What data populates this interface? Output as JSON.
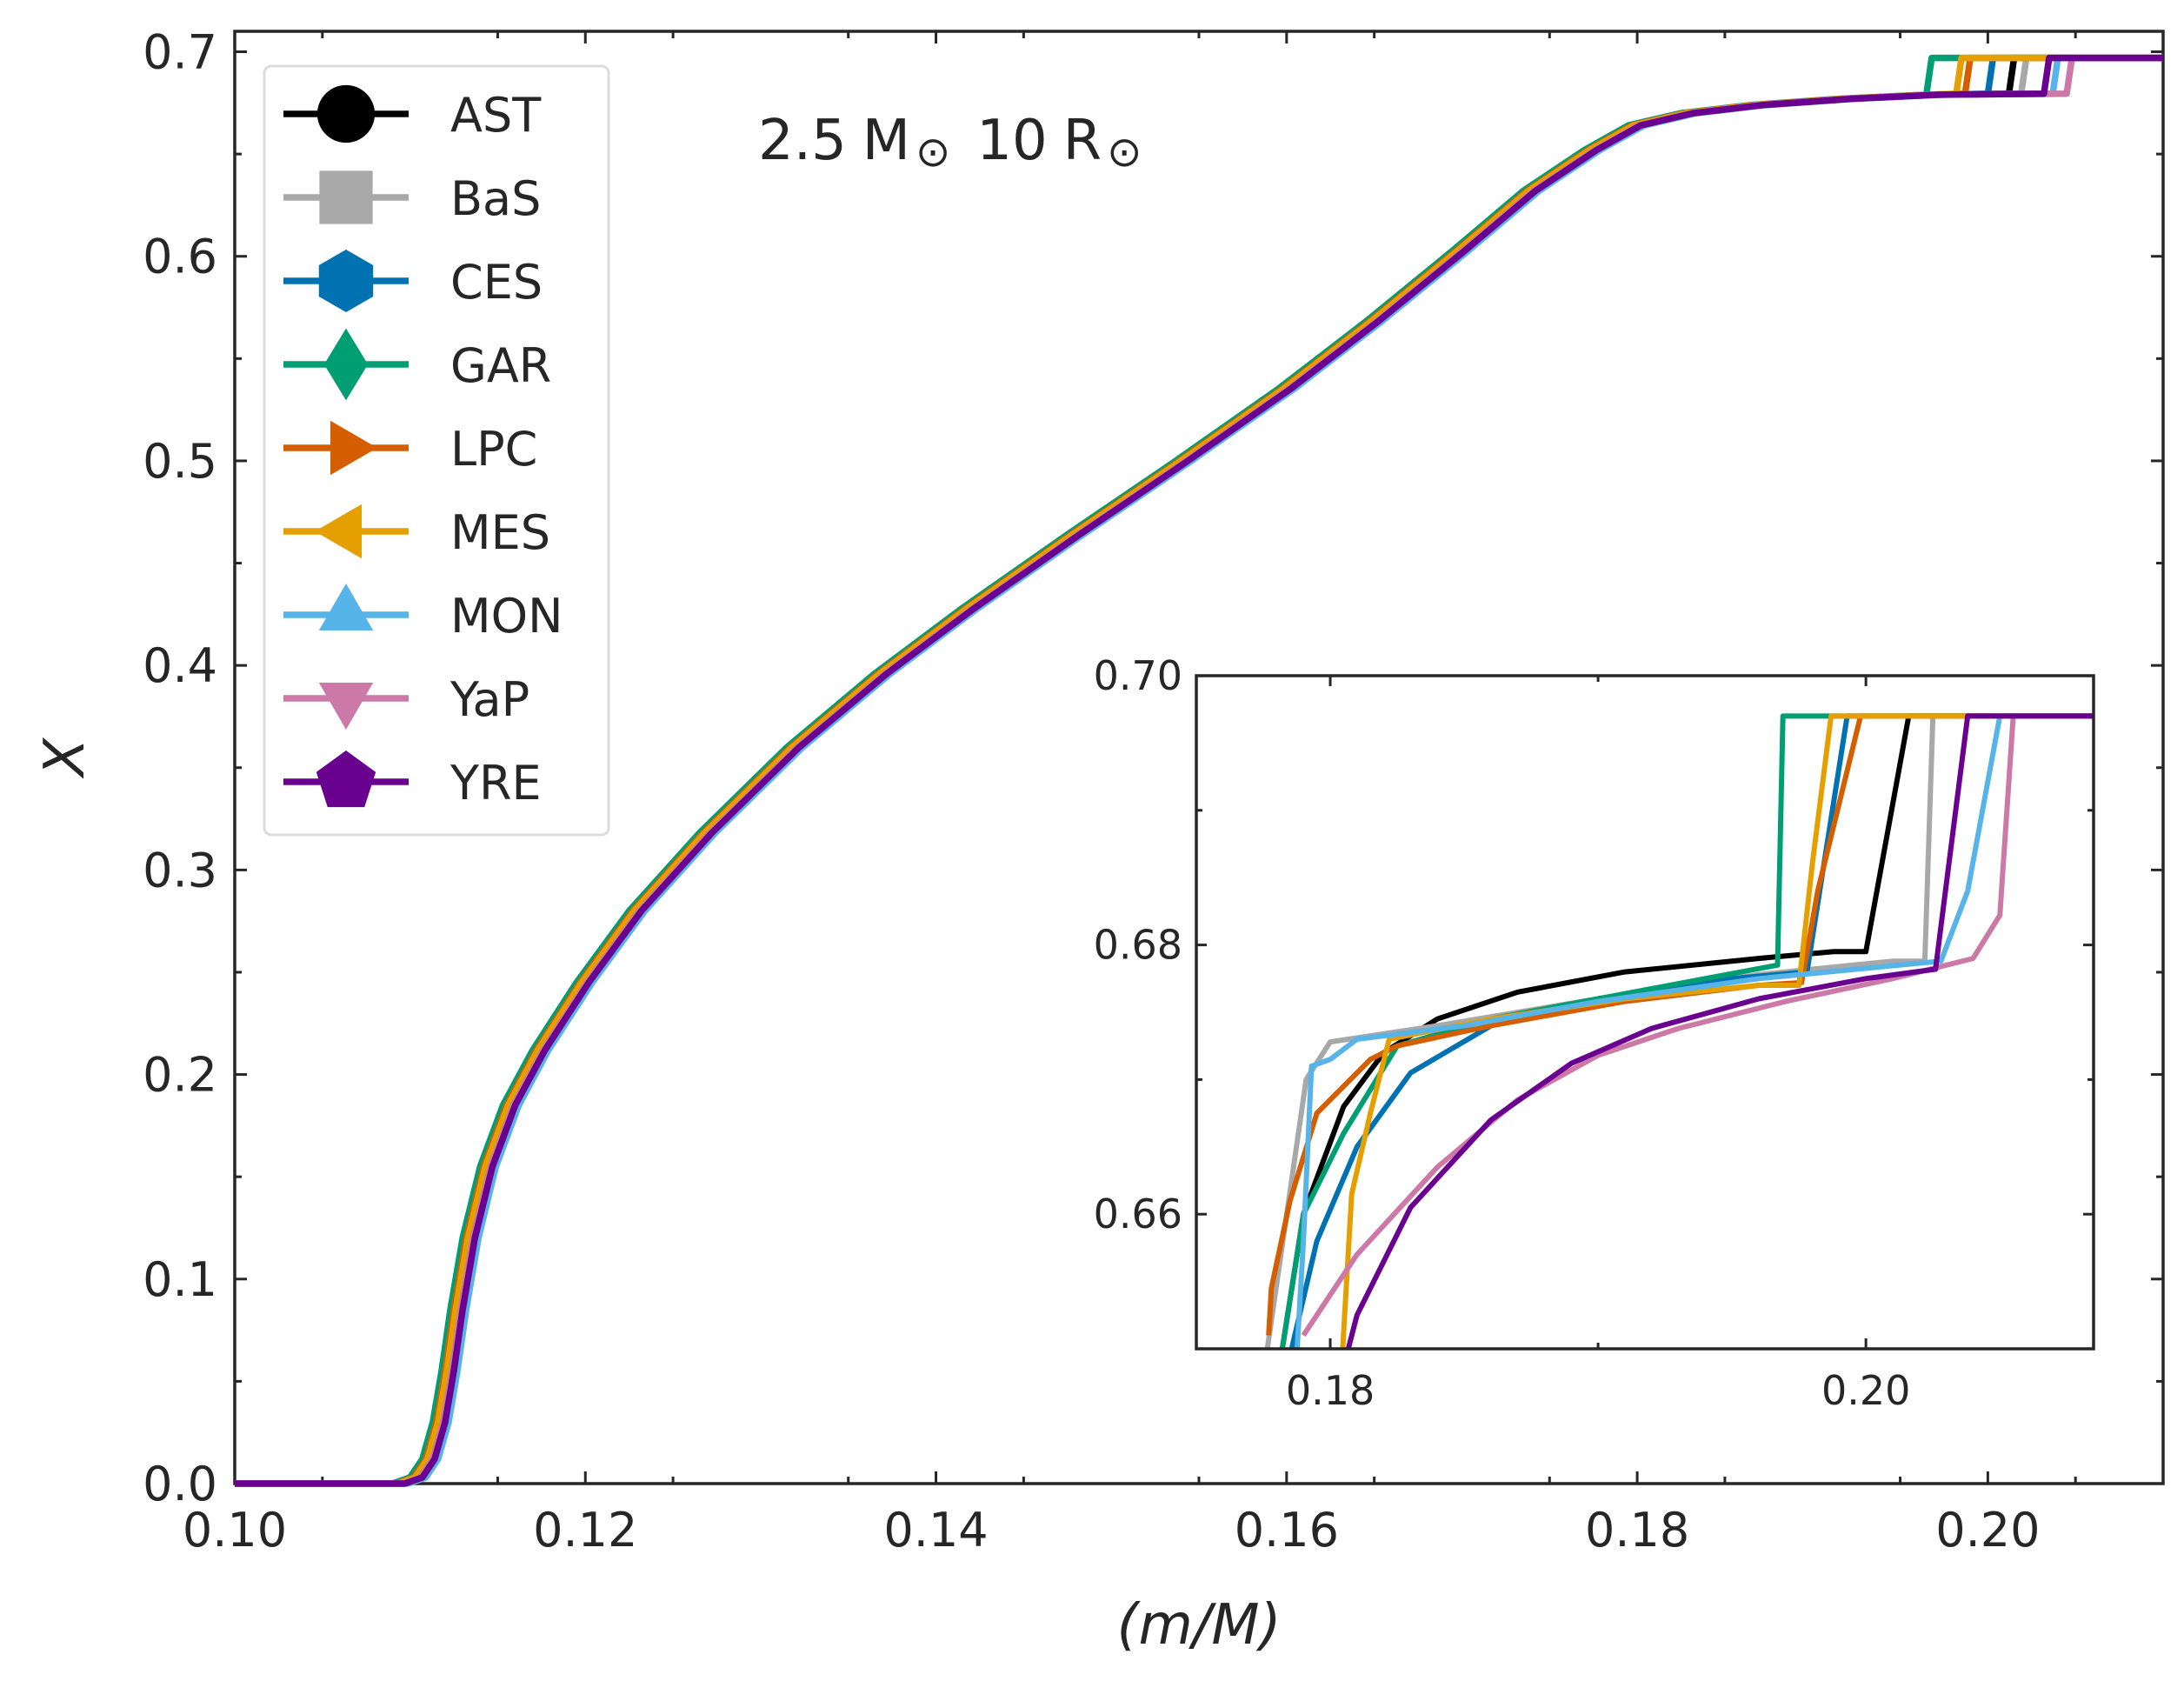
{
  "chart_data": {
    "type": "line",
    "annotation": {
      "value": "2.5",
      "unit_mass": "M",
      "unit_radius": "R",
      "radius_value": "10",
      "sun_symbol": "⊙"
    },
    "xlabel": "(m/M)",
    "ylabel": "X",
    "xlim": [
      0.1,
      0.21
    ],
    "ylim": [
      0.0,
      0.71
    ],
    "x_ticks": [
      "0.10",
      "0.12",
      "0.14",
      "0.16",
      "0.18",
      "0.20"
    ],
    "x_tick_values": [
      0.1,
      0.12,
      0.14,
      0.16,
      0.18,
      0.2
    ],
    "y_ticks": [
      "0.0",
      "0.1",
      "0.2",
      "0.3",
      "0.4",
      "0.5",
      "0.6",
      "0.7"
    ],
    "y_tick_values": [
      0.0,
      0.1,
      0.2,
      0.3,
      0.4,
      0.5,
      0.6,
      0.7
    ],
    "legend": {
      "placement": "top-left"
    },
    "series": [
      {
        "name": "AST",
        "color": "#000000",
        "marker": "circle",
        "offset": 0.0,
        "x_step1": 0.1801,
        "x_step2": 0.1972,
        "x_step3": 0.2015
      },
      {
        "name": "BaS",
        "color": "#a8a8a8",
        "marker": "square",
        "offset": -0.0003,
        "x_step1": 0.1795,
        "x_step2": 0.2001,
        "x_step3": 0.2022
      },
      {
        "name": "CES",
        "color": "#0072b2",
        "marker": "hexagon",
        "offset": 0.0002,
        "x_step1": 0.1803,
        "x_step2": 0.1988,
        "x_step3": 0.2003
      },
      {
        "name": "GAR",
        "color": "#009e73",
        "marker": "diamond",
        "offset": -0.0005,
        "x_step1": 0.18,
        "x_step2": 0.1972,
        "x_step3": 0.1968
      },
      {
        "name": "LPC",
        "color": "#d55e00",
        "marker": "triangle-right",
        "offset": -0.0003,
        "x_step1": 0.1787,
        "x_step2": 0.1978,
        "x_step3": 0.199
      },
      {
        "name": "MES",
        "color": "#e69f00",
        "marker": "triangle-left",
        "offset": -0.0002,
        "x_step1": 0.1793,
        "x_step2": 0.1985,
        "x_step3": 0.1985
      },
      {
        "name": "MON",
        "color": "#56b4e9",
        "marker": "triangle-up",
        "offset": 0.0004,
        "x_step1": 0.179,
        "x_step2": 0.204,
        "x_step3": 0.204
      },
      {
        "name": "YaP",
        "color": "#cc79a7",
        "marker": "triangle-down",
        "offset": 0.0001,
        "x_step1": 0.1805,
        "x_step2": 0.2034,
        "x_step3": 0.2048
      },
      {
        "name": "YRE",
        "color": "#6a0090",
        "marker": "pentagon",
        "offset": 0.0002,
        "x_step1": 0.1808,
        "x_step2": 0.2024,
        "x_step3": 0.2035
      }
    ],
    "inset": {
      "xlim": [
        0.175,
        0.2085
      ],
      "ylim": [
        0.65,
        0.7
      ],
      "x_ticks": [
        "0.18",
        "0.20"
      ],
      "x_tick_values": [
        0.18,
        0.2
      ],
      "y_ticks": [
        "0.66",
        "0.68",
        "0.70"
      ],
      "y_tick_values": [
        0.66,
        0.68,
        0.7
      ],
      "series": [
        {
          "name": "AST",
          "points": [
            [
              0.1775,
              0.641
            ],
            [
              0.179,
              0.66
            ],
            [
              0.1805,
              0.668
            ],
            [
              0.182,
              0.672
            ],
            [
              0.184,
              0.6745
            ],
            [
              0.187,
              0.6765
            ],
            [
              0.191,
              0.678
            ],
            [
              0.196,
              0.679
            ],
            [
              0.1988,
              0.6795
            ],
            [
              0.2,
              0.6795
            ],
            [
              0.2016,
              0.697
            ],
            [
              0.2085,
              0.697
            ]
          ]
        },
        {
          "name": "BaS",
          "points": [
            [
              0.177,
              0.641
            ],
            [
              0.1791,
              0.67
            ],
            [
              0.18,
              0.6728
            ],
            [
              0.184,
              0.674
            ],
            [
              0.19,
              0.676
            ],
            [
              0.196,
              0.6778
            ],
            [
              0.201,
              0.6788
            ],
            [
              0.2022,
              0.6788
            ],
            [
              0.2025,
              0.697
            ],
            [
              0.2085,
              0.697
            ]
          ]
        },
        {
          "name": "CES",
          "points": [
            [
              0.1775,
              0.641
            ],
            [
              0.1795,
              0.658
            ],
            [
              0.181,
              0.665
            ],
            [
              0.183,
              0.6705
            ],
            [
              0.186,
              0.674
            ],
            [
              0.19,
              0.676
            ],
            [
              0.195,
              0.6775
            ],
            [
              0.1978,
              0.678
            ],
            [
              0.1993,
              0.697
            ],
            [
              0.2085,
              0.697
            ]
          ]
        },
        {
          "name": "GAR",
          "points": [
            [
              0.1775,
              0.641
            ],
            [
              0.179,
              0.66
            ],
            [
              0.1805,
              0.666
            ],
            [
              0.1825,
              0.6725
            ],
            [
              0.186,
              0.6745
            ],
            [
              0.19,
              0.676
            ],
            [
              0.194,
              0.6775
            ],
            [
              0.1967,
              0.6785
            ],
            [
              0.1969,
              0.697
            ],
            [
              0.2085,
              0.697
            ]
          ]
        },
        {
          "name": "LPC",
          "points": [
            [
              0.1777,
              0.651
            ],
            [
              0.1778,
              0.6545
            ],
            [
              0.1785,
              0.661
            ],
            [
              0.1795,
              0.6675
            ],
            [
              0.1815,
              0.6715
            ],
            [
              0.1825,
              0.6725
            ],
            [
              0.186,
              0.674
            ],
            [
              0.191,
              0.6758
            ],
            [
              0.196,
              0.677
            ],
            [
              0.1976,
              0.6772
            ],
            [
              0.1982,
              0.684
            ],
            [
              0.1998,
              0.697
            ],
            [
              0.2085,
              0.697
            ]
          ]
        },
        {
          "name": "MES",
          "points": [
            [
              0.1802,
              0.641
            ],
            [
              0.1808,
              0.6615
            ],
            [
              0.1815,
              0.6675
            ],
            [
              0.1822,
              0.673
            ],
            [
              0.186,
              0.6745
            ],
            [
              0.191,
              0.676
            ],
            [
              0.196,
              0.677
            ],
            [
              0.1975,
              0.677
            ],
            [
              0.198,
              0.686
            ],
            [
              0.1987,
              0.697
            ],
            [
              0.2085,
              0.697
            ]
          ]
        },
        {
          "name": "MON",
          "points": [
            [
              0.1785,
              0.641
            ],
            [
              0.179,
              0.658
            ],
            [
              0.1793,
              0.671
            ],
            [
              0.18,
              0.6715
            ],
            [
              0.181,
              0.673
            ],
            [
              0.185,
              0.674
            ],
            [
              0.19,
              0.6758
            ],
            [
              0.196,
              0.6775
            ],
            [
              0.2028,
              0.6788
            ],
            [
              0.2038,
              0.684
            ],
            [
              0.205,
              0.697
            ],
            [
              0.2085,
              0.697
            ]
          ]
        },
        {
          "name": "YaP",
          "points": [
            [
              0.179,
              0.651
            ],
            [
              0.181,
              0.657
            ],
            [
              0.184,
              0.6635
            ],
            [
              0.187,
              0.6685
            ],
            [
              0.19,
              0.6718
            ],
            [
              0.193,
              0.6738
            ],
            [
              0.197,
              0.6758
            ],
            [
              0.201,
              0.6775
            ],
            [
              0.204,
              0.679
            ],
            [
              0.205,
              0.6822
            ],
            [
              0.2055,
              0.697
            ],
            [
              0.2085,
              0.697
            ]
          ]
        },
        {
          "name": "YRE",
          "points": [
            [
              0.1795,
              0.641
            ],
            [
              0.181,
              0.6525
            ],
            [
              0.183,
              0.6605
            ],
            [
              0.186,
              0.667
            ],
            [
              0.189,
              0.6712
            ],
            [
              0.192,
              0.6738
            ],
            [
              0.196,
              0.676
            ],
            [
              0.2,
              0.6775
            ],
            [
              0.2026,
              0.6782
            ],
            [
              0.2038,
              0.697
            ],
            [
              0.2085,
              0.697
            ]
          ]
        }
      ]
    }
  }
}
